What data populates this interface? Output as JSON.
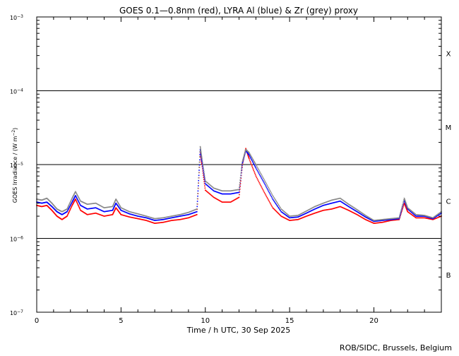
{
  "chart_data": {
    "type": "line",
    "title": "GOES 0.1—0.8nm (red), LYRA Al (blue) & Zr (grey) proxy",
    "xlabel": "Time / h UTC, 30 Sep 2025",
    "ylabel_main": "GOES Irradiance / (W m",
    "ylabel_sup": "−2",
    "ylabel_close": ")",
    "credit": "ROB/SIDC, Brussels, Belgium",
    "xlim": [
      0,
      24
    ],
    "ylim": [
      1e-07,
      0.001
    ],
    "yscale": "log",
    "x_ticks": [
      {
        "value": 0,
        "label": "0"
      },
      {
        "value": 5,
        "label": "5"
      },
      {
        "value": 10,
        "label": "10"
      },
      {
        "value": 15,
        "label": "15"
      },
      {
        "value": 20,
        "label": "20"
      }
    ],
    "y_ticks": [
      {
        "value": 0.001,
        "base": "10",
        "exp": "−3"
      },
      {
        "value": 0.0001,
        "base": "10",
        "exp": "−4"
      },
      {
        "value": 1e-05,
        "base": "10",
        "exp": "−5"
      },
      {
        "value": 1e-06,
        "base": "10",
        "exp": "−6"
      },
      {
        "value": 1e-07,
        "base": "10",
        "exp": "−7"
      }
    ],
    "class_lines": [
      0.0001,
      1e-05,
      1e-06
    ],
    "flare_classes": [
      {
        "label": "X",
        "value": 0.00032
      },
      {
        "label": "M",
        "value": 3.2e-05
      },
      {
        "label": "C",
        "value": 3.2e-06
      },
      {
        "label": "B",
        "value": 3.2e-07
      }
    ],
    "series": [
      {
        "name": "GOES 0.1—0.8nm",
        "color": "#ff0000",
        "x": [
          0,
          0.3,
          0.6,
          0.9,
          1.2,
          1.5,
          1.8,
          2.1,
          2.3,
          2.6,
          3.0,
          3.5,
          4.0,
          4.5,
          4.7,
          5.0,
          5.5,
          6.0,
          6.5,
          7.0,
          7.5,
          8.0,
          8.5,
          9.0,
          9.5,
          9.7,
          9.8,
          10.0,
          10.5,
          11.0,
          11.5,
          12.0,
          12.2,
          12.4,
          12.6,
          13.0,
          13.5,
          14.0,
          14.5,
          15.0,
          15.5,
          16.0,
          16.5,
          17.0,
          17.5,
          18.0,
          18.5,
          19.0,
          19.5,
          20.0,
          20.5,
          21.0,
          21.5,
          21.8,
          22.0,
          22.5,
          23.0,
          23.5,
          24.0
        ],
        "y": [
          2.8e-06,
          2.7e-06,
          2.8e-06,
          2.4e-06,
          2e-06,
          1.8e-06,
          2e-06,
          2.8e-06,
          3.4e-06,
          2.4e-06,
          2.1e-06,
          2.2e-06,
          2e-06,
          2.1e-06,
          2.6e-06,
          2.1e-06,
          1.95e-06,
          1.85e-06,
          1.75e-06,
          1.6e-06,
          1.65e-06,
          1.75e-06,
          1.8e-06,
          1.9e-06,
          2.1e-06,
          1.5e-05,
          1e-05,
          4.5e-06,
          3.6e-06,
          3.1e-06,
          3.1e-06,
          3.6e-06,
          1e-05,
          1.65e-05,
          1.2e-05,
          7e-06,
          4.2e-06,
          2.6e-06,
          2e-06,
          1.75e-06,
          1.8e-06,
          2e-06,
          2.2e-06,
          2.4e-06,
          2.5e-06,
          2.7e-06,
          2.4e-06,
          2.1e-06,
          1.8e-06,
          1.6e-06,
          1.65e-06,
          1.75e-06,
          1.8e-06,
          3e-06,
          2.3e-06,
          1.9e-06,
          1.9e-06,
          1.8e-06,
          2e-06
        ]
      },
      {
        "name": "LYRA Al",
        "color": "#0000ff",
        "x": [
          0,
          0.3,
          0.6,
          0.9,
          1.2,
          1.5,
          1.8,
          2.1,
          2.3,
          2.6,
          3.0,
          3.5,
          4.0,
          4.5,
          4.7,
          5.0,
          5.5,
          6.0,
          6.5,
          7.0,
          7.5,
          8.0,
          8.5,
          9.0,
          9.5,
          9.7,
          9.8,
          10.0,
          10.5,
          11.0,
          11.5,
          12.0,
          12.2,
          12.4,
          12.6,
          13.0,
          13.5,
          14.0,
          14.5,
          15.0,
          15.5,
          16.0,
          16.5,
          17.0,
          17.5,
          18.0,
          18.5,
          19.0,
          19.5,
          20.0,
          20.5,
          21.0,
          21.5,
          21.8,
          22.0,
          22.5,
          23.0,
          23.5,
          24.0
        ],
        "y": [
          3.1e-06,
          3e-06,
          3.1e-06,
          2.7e-06,
          2.3e-06,
          2.1e-06,
          2.3e-06,
          3.1e-06,
          3.8e-06,
          2.8e-06,
          2.5e-06,
          2.6e-06,
          2.3e-06,
          2.4e-06,
          3e-06,
          2.4e-06,
          2.15e-06,
          2e-06,
          1.9e-06,
          1.75e-06,
          1.8e-06,
          1.9e-06,
          2e-06,
          2.1e-06,
          2.3e-06,
          1.6e-05,
          1.1e-05,
          5.5e-06,
          4.4e-06,
          4e-06,
          4e-06,
          4.2e-06,
          1.05e-05,
          1.55e-05,
          1.35e-05,
          9e-06,
          5.6e-06,
          3.4e-06,
          2.3e-06,
          1.9e-06,
          1.95e-06,
          2.2e-06,
          2.5e-06,
          2.8e-06,
          3e-06,
          3.2e-06,
          2.7e-06,
          2.3e-06,
          1.95e-06,
          1.7e-06,
          1.75e-06,
          1.8e-06,
          1.85e-06,
          3.3e-06,
          2.5e-06,
          2e-06,
          2e-06,
          1.85e-06,
          2.2e-06
        ]
      },
      {
        "name": "LYRA Zr",
        "color": "#888888",
        "x": [
          0,
          0.3,
          0.6,
          0.9,
          1.2,
          1.5,
          1.8,
          2.1,
          2.3,
          2.6,
          3.0,
          3.5,
          4.0,
          4.5,
          4.7,
          5.0,
          5.5,
          6.0,
          6.5,
          7.0,
          7.5,
          8.0,
          8.5,
          9.0,
          9.5,
          9.7,
          9.8,
          10.0,
          10.5,
          11.0,
          11.5,
          12.0,
          12.2,
          12.4,
          12.6,
          13.0,
          13.5,
          14.0,
          14.5,
          15.0,
          15.5,
          16.0,
          16.5,
          17.0,
          17.5,
          18.0,
          18.5,
          19.0,
          19.5,
          20.0,
          20.5,
          21.0,
          21.5,
          21.8,
          22.0,
          22.5,
          23.0,
          23.5,
          24.0
        ],
        "y": [
          3.4e-06,
          3.3e-06,
          3.5e-06,
          3e-06,
          2.5e-06,
          2.3e-06,
          2.5e-06,
          3.5e-06,
          4.3e-06,
          3.2e-06,
          2.9e-06,
          3e-06,
          2.6e-06,
          2.7e-06,
          3.4e-06,
          2.6e-06,
          2.3e-06,
          2.15e-06,
          2e-06,
          1.85e-06,
          1.9e-06,
          2e-06,
          2.1e-06,
          2.25e-06,
          2.5e-06,
          1.75e-05,
          1.2e-05,
          6e-06,
          4.8e-06,
          4.4e-06,
          4.4e-06,
          4.6e-06,
          1.1e-05,
          1.6e-05,
          1.45e-05,
          1e-05,
          6.2e-06,
          3.8e-06,
          2.5e-06,
          2e-06,
          2.05e-06,
          2.35e-06,
          2.7e-06,
          3e-06,
          3.3e-06,
          3.5e-06,
          2.9e-06,
          2.45e-06,
          2.05e-06,
          1.75e-06,
          1.8e-06,
          1.85e-06,
          1.9e-06,
          3.5e-06,
          2.6e-06,
          2.1e-06,
          2.05e-06,
          1.9e-06,
          2.3e-06
        ]
      }
    ]
  }
}
